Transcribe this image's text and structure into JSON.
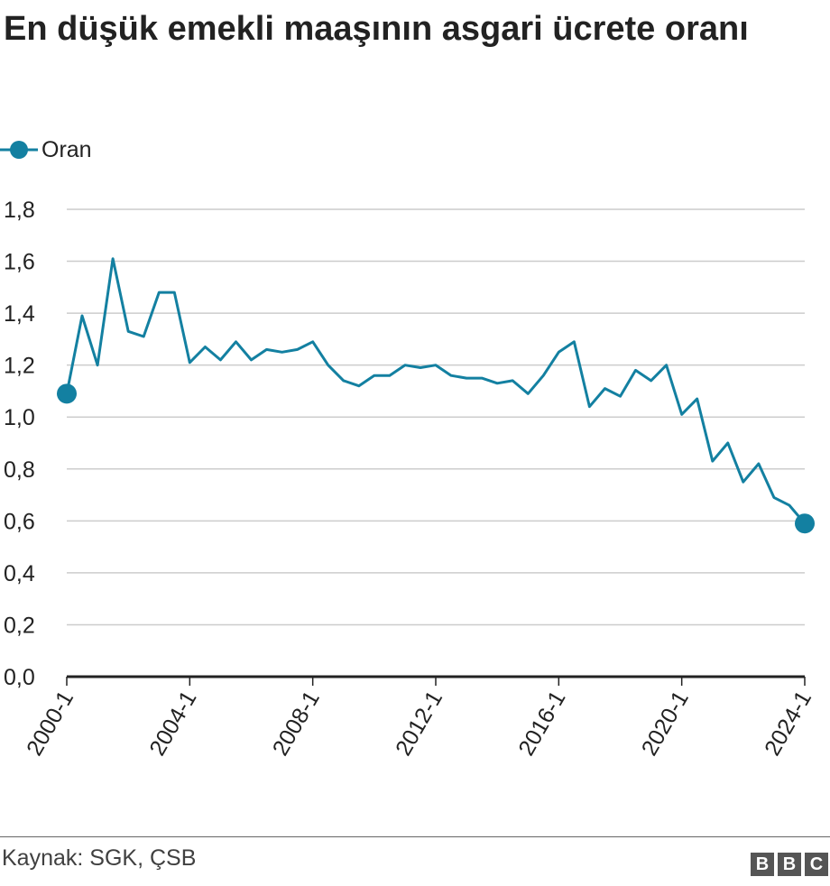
{
  "title": "En düşük emekli maaşının asgari ücrete oranı",
  "legend": {
    "label": "Oran"
  },
  "source": "Kaynak: SGK, ÇSB",
  "logo": {
    "letters": [
      "B",
      "B",
      "C"
    ]
  },
  "colors": {
    "line": "#1380a1",
    "grid": "#cccccc",
    "baseline": "#222222",
    "text": "#222222"
  },
  "chart_data": {
    "type": "line",
    "title": "En düşük emekli maaşının asgari ücrete oranı",
    "xlabel": "",
    "ylabel": "",
    "ylim": [
      0,
      1.8
    ],
    "y_ticks": [
      "0,0",
      "0,2",
      "0,4",
      "0,6",
      "0,8",
      "1,0",
      "1,2",
      "1,4",
      "1,6",
      "1,8"
    ],
    "x_ticks": [
      "2000-1",
      "2004-1",
      "2008-1",
      "2012-1",
      "2016-1",
      "2020-1",
      "2024-1"
    ],
    "x_range": [
      2000.0,
      2024.0
    ],
    "grid": true,
    "legend_position": "top-left",
    "series": [
      {
        "name": "Oran",
        "x": [
          2000.0,
          2000.5,
          2001.0,
          2001.5,
          2002.0,
          2002.5,
          2003.0,
          2003.5,
          2004.0,
          2004.5,
          2005.0,
          2005.5,
          2006.0,
          2006.5,
          2007.0,
          2007.5,
          2008.0,
          2008.5,
          2009.0,
          2009.5,
          2010.0,
          2010.5,
          2011.0,
          2011.5,
          2012.0,
          2012.5,
          2013.0,
          2013.5,
          2014.0,
          2014.5,
          2015.0,
          2015.5,
          2016.0,
          2016.5,
          2017.0,
          2017.5,
          2018.0,
          2018.5,
          2019.0,
          2019.5,
          2020.0,
          2020.5,
          2021.0,
          2021.5,
          2022.0,
          2022.5,
          2023.0,
          2023.5,
          2024.0
        ],
        "values": [
          1.09,
          1.39,
          1.2,
          1.61,
          1.33,
          1.31,
          1.48,
          1.48,
          1.21,
          1.27,
          1.22,
          1.29,
          1.22,
          1.26,
          1.25,
          1.26,
          1.29,
          1.2,
          1.14,
          1.12,
          1.16,
          1.16,
          1.2,
          1.19,
          1.2,
          1.16,
          1.15,
          1.15,
          1.13,
          1.14,
          1.09,
          1.16,
          1.25,
          1.29,
          1.04,
          1.11,
          1.08,
          1.18,
          1.14,
          1.2,
          1.01,
          1.07,
          0.83,
          0.9,
          0.75,
          0.82,
          0.69,
          0.66,
          0.59
        ],
        "marked_endpoints": true
      }
    ]
  }
}
